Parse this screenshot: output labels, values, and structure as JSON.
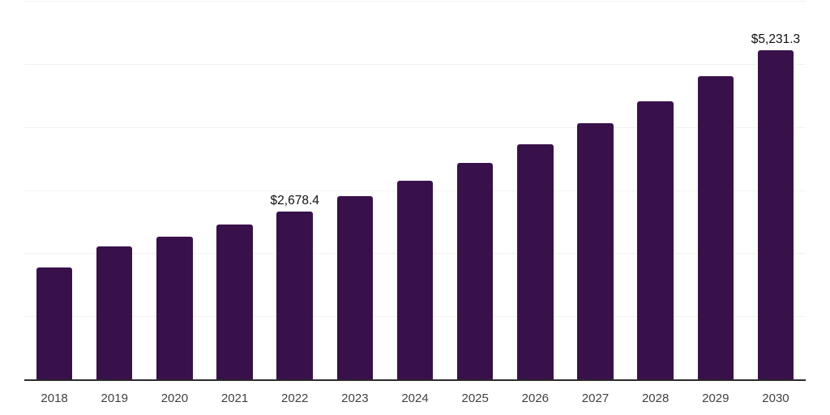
{
  "chart_data": {
    "type": "bar",
    "title": "",
    "xlabel": "",
    "ylabel": "",
    "categories": [
      "2018",
      "2019",
      "2020",
      "2021",
      "2022",
      "2023",
      "2024",
      "2025",
      "2026",
      "2027",
      "2028",
      "2029",
      "2030"
    ],
    "values": [
      1790,
      2120,
      2280,
      2470,
      2678.4,
      2912,
      3166,
      3443,
      3743,
      4070,
      4426,
      4813,
      5231.3
    ],
    "labeled_points": [
      {
        "category": "2022",
        "label": "$2,678.4"
      },
      {
        "category": "2030",
        "label": "$5,231.3"
      }
    ],
    "ylim": [
      0,
      6000
    ],
    "grid_step": 1000,
    "grid": "horizontal",
    "legend": "none",
    "colors": {
      "bar": "#38114B",
      "axis": "#2B2B2B",
      "gridline": "#F2F2F2",
      "tick_label": "#404040",
      "value_label": "#0F0F0F",
      "background": "#FFFFFF"
    }
  }
}
